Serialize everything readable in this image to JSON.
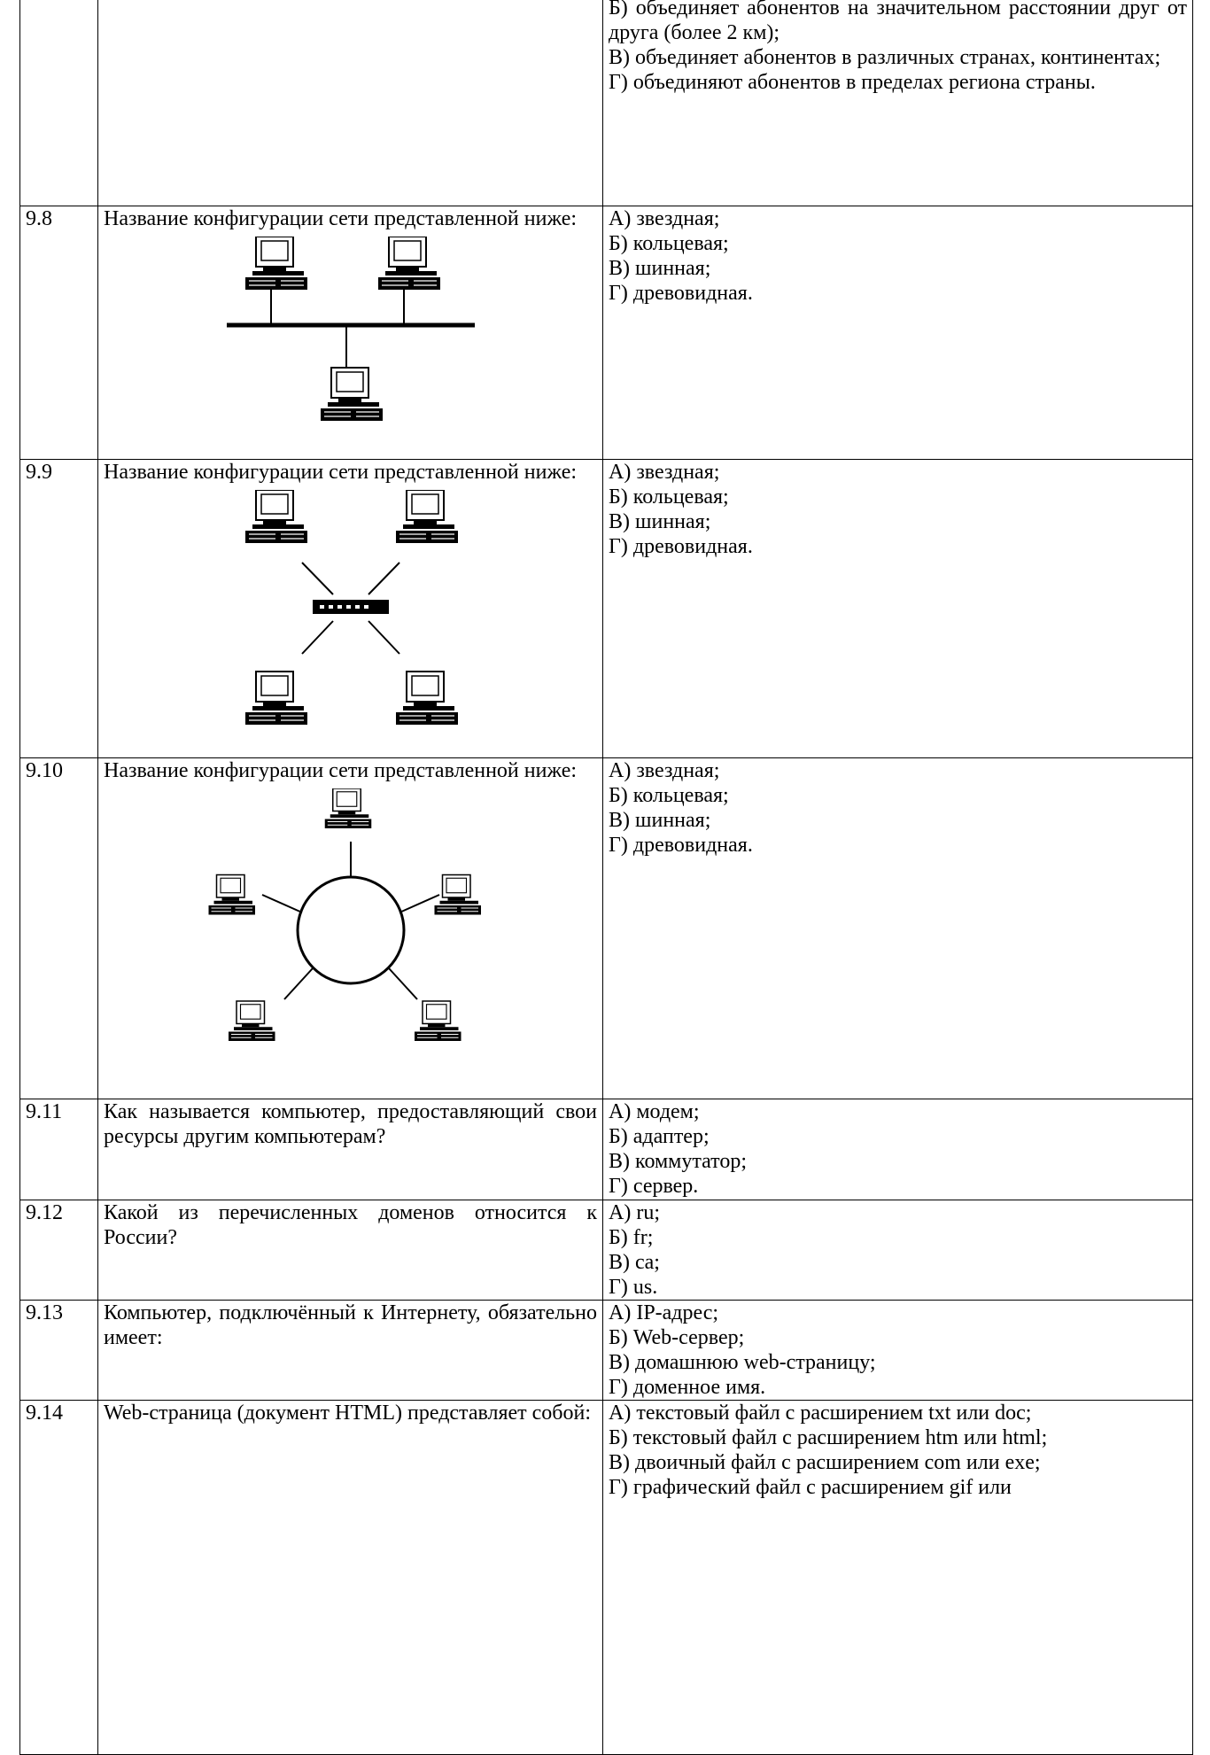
{
  "table": {
    "rows": [
      {
        "options": [
          "Б) объединяет абонентов на значительном расстоянии друг от друга (более 2 км);",
          "В) объединяет абонентов в различных странах, континентах;",
          "Г) объединяют абонентов в пределах региона страны."
        ]
      },
      {
        "number": "9.8",
        "question": "Название конфигурации сети представленной ниже:",
        "options": [
          "А) звездная;",
          "Б) кольцевая;",
          "В) шинная;",
          "Г) древовидная."
        ]
      },
      {
        "number": "9.9",
        "question": "Название конфигурации сети представленной ниже:",
        "options": [
          "А) звездная;",
          "Б) кольцевая;",
          "В) шинная;",
          "Г) древовидная."
        ]
      },
      {
        "number": "9.10",
        "question": "Название конфигурации сети представленной ниже:",
        "options": [
          "А) звездная;",
          "Б) кольцевая;",
          "В) шинная;",
          "Г) древовидная."
        ]
      },
      {
        "number": "9.11",
        "question": "Как называется компьютер, предоставляющий свои ресурсы другим компьютерам?",
        "options": [
          "А) модем;",
          "Б) адаптер;",
          "В) коммутатор;",
          "Г) сервер."
        ]
      },
      {
        "number": "9.12",
        "question": "Какой из перечисленных доменов относится к России?",
        "options": [
          "А) ru;",
          "Б) fr;",
          "В) ca;",
          "Г) us."
        ]
      },
      {
        "number": "9.13",
        "question": "Компьютер, подключённый к Интернету, обязательно имеет:",
        "options": [
          "А) IP-адрес;",
          "Б) Web-сервер;",
          "В) домашнюю web-страницу;",
          "Г) доменное имя."
        ]
      },
      {
        "number": "9.14",
        "question": "Web-страница (документ HTML) представляет собой:",
        "options": [
          "А) текстовый файл с расширением txt или doc;",
          "Б) текстовый файл с расширением htm или html;",
          "В) двоичный файл с расширением com или exe;",
          "Г) графический файл с расширением gif или"
        ]
      }
    ]
  }
}
